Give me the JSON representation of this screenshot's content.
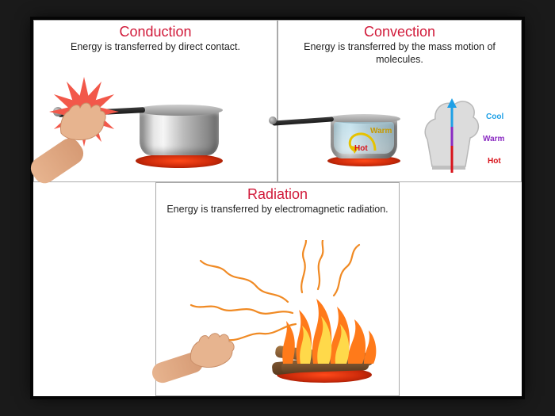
{
  "colors": {
    "title": "#d11a3a",
    "subtitle": "#111111",
    "burst": "#f2584a",
    "burner_outer": "#7a1400",
    "burner_inner": "#ff4a1a",
    "cool": "#1ea0e6",
    "warm": "#8a2ac2",
    "hot": "#d8121a",
    "warm_label": "#c79a00",
    "wave": "#f08a24",
    "flame_outer": "#ff7a1a",
    "flame_inner": "#ffd94a",
    "log_a": "#6b4a2a",
    "log_b": "#a77843"
  },
  "conduction": {
    "title": "Conduction",
    "subtitle": "Energy is transferred by direct contact."
  },
  "convection": {
    "title": "Convection",
    "subtitle": "Energy is transferred by the mass motion of molecules.",
    "labels": {
      "cool": "Cool",
      "warm": "Warm",
      "hot": "Hot",
      "pot_warm": "Warm",
      "pot_hot": "Hot"
    }
  },
  "radiation": {
    "title": "Radiation",
    "subtitle": "Energy is transferred by electromagnetic radiation."
  }
}
